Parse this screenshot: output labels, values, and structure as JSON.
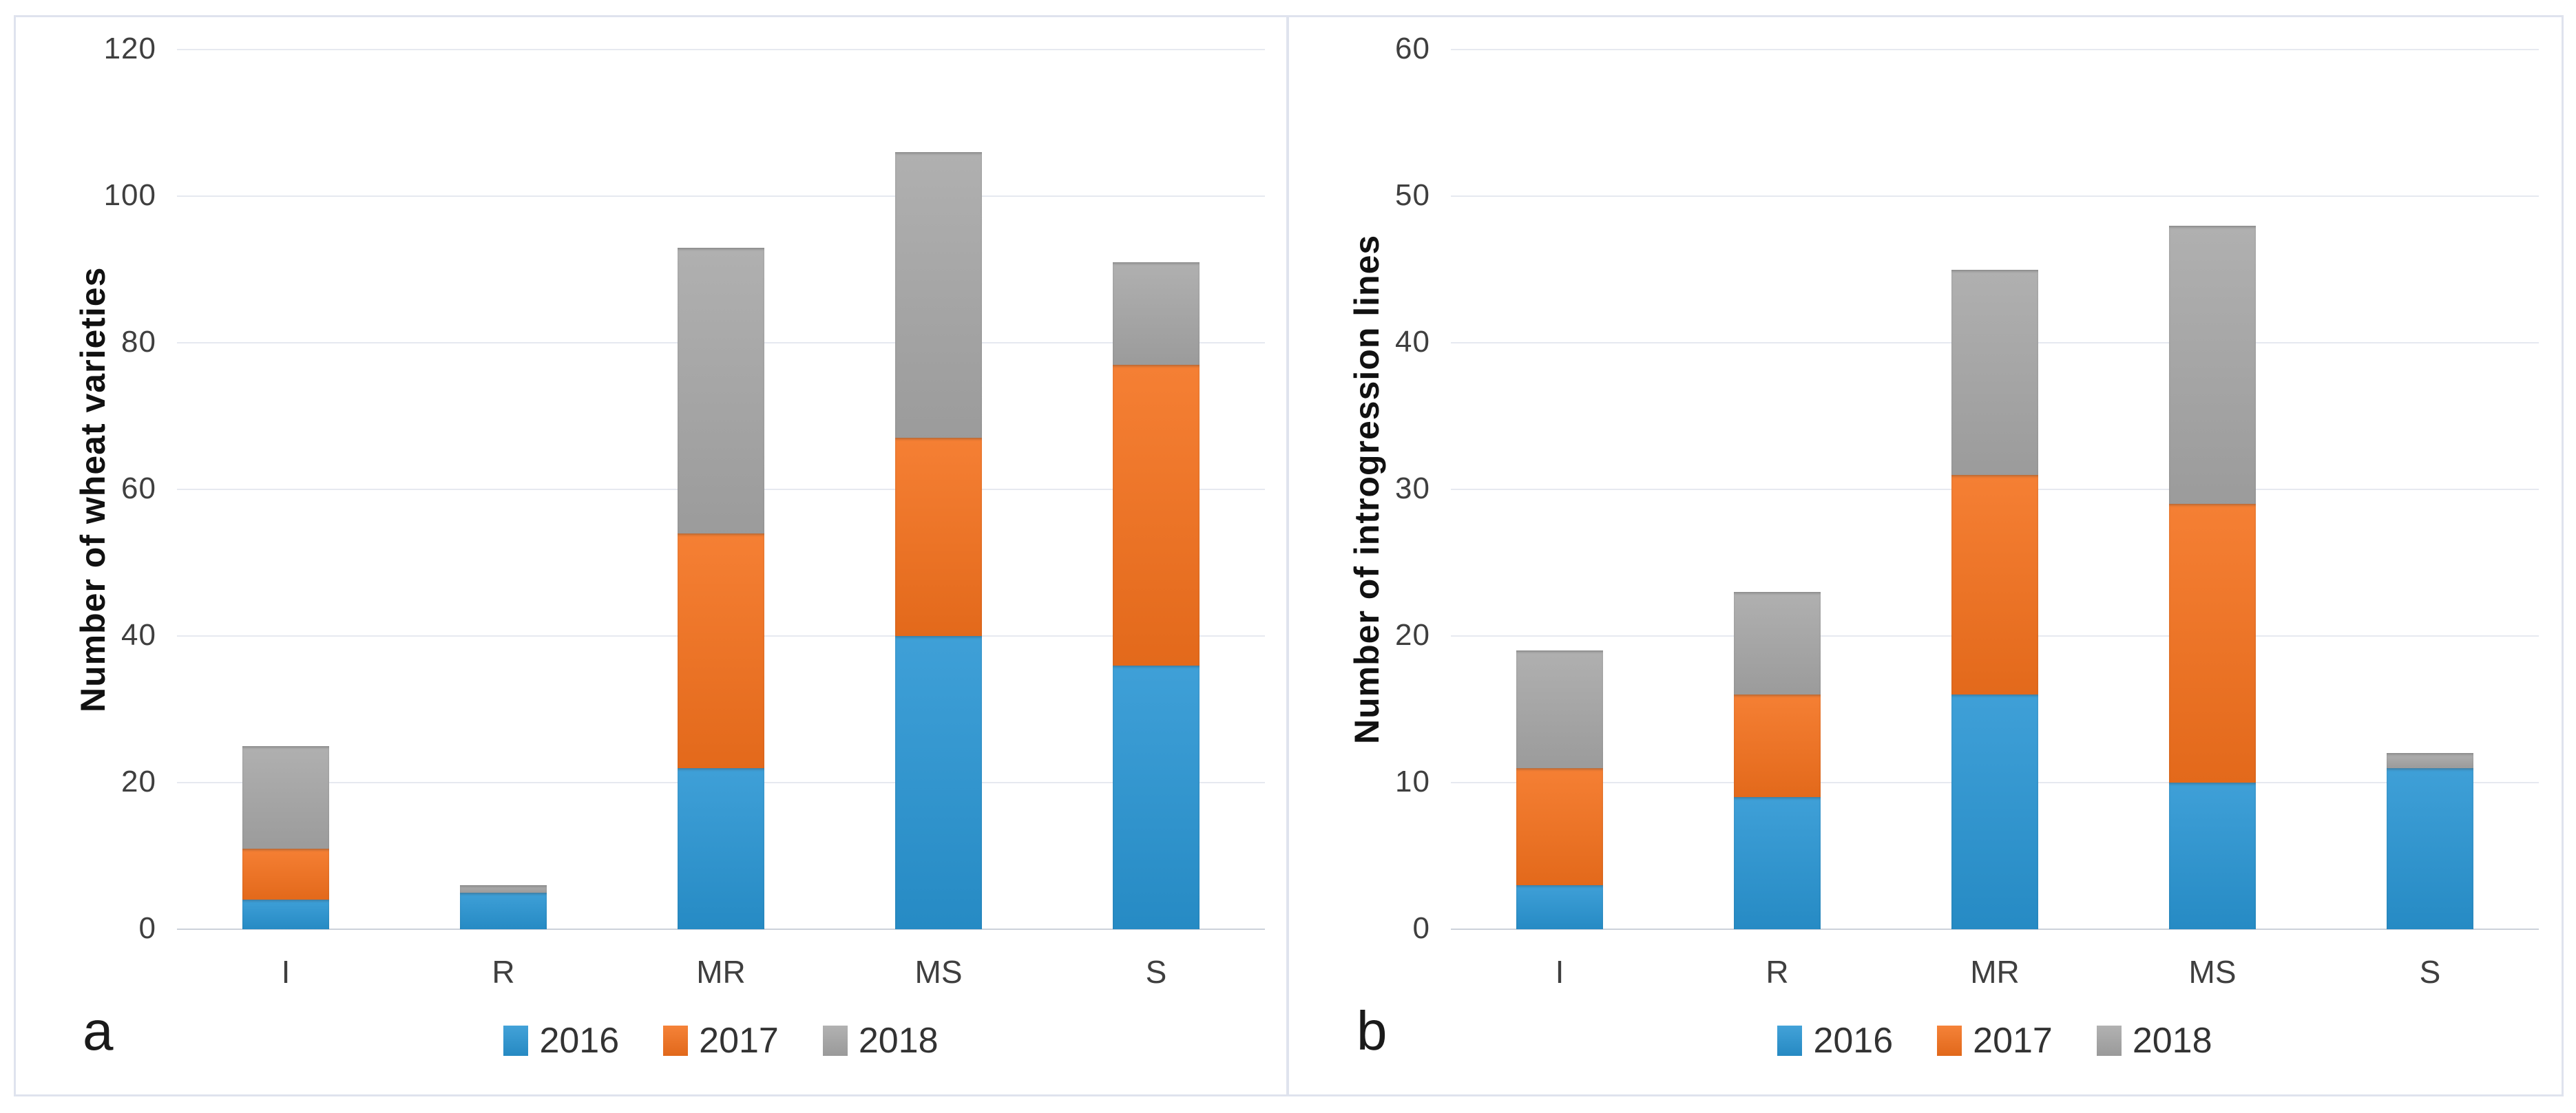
{
  "figure": {
    "panel_letters": [
      "a",
      "b"
    ],
    "background": "#ffffff",
    "frame_color": "#dfe3ee"
  },
  "colors": {
    "series_2016": "#2995d3",
    "series_2017": "#f4711d",
    "series_2018": "#a7a7a7",
    "gridline": "#e6e9f0",
    "baseline": "#ccd1da",
    "tick_text": "#3f3f3f",
    "title_text": "#111111"
  },
  "chart_data": [
    {
      "type": "bar",
      "stacked": true,
      "panel_label": "a",
      "title": "",
      "xlabel": "",
      "ylabel": "Number of wheat varieties",
      "categories": [
        "I",
        "R",
        "MR",
        "MS",
        "S"
      ],
      "series": [
        {
          "name": "2016",
          "color": "#2995d3",
          "values": [
            4,
            5,
            22,
            40,
            36
          ]
        },
        {
          "name": "2017",
          "color": "#f4711d",
          "values": [
            7,
            0,
            32,
            27,
            41
          ]
        },
        {
          "name": "2018",
          "color": "#a7a7a7",
          "values": [
            14,
            1,
            39,
            39,
            14
          ]
        }
      ],
      "totals": [
        25,
        6,
        93,
        106,
        91
      ],
      "ylim": [
        0,
        120
      ],
      "ytick_step": 20,
      "ytick_labels": [
        "0",
        "20",
        "40",
        "60",
        "80",
        "100",
        "120"
      ],
      "grid": true,
      "legend_position": "bottom",
      "legend_entries": [
        "2016",
        "2017",
        "2018"
      ]
    },
    {
      "type": "bar",
      "stacked": true,
      "panel_label": "b",
      "title": "",
      "xlabel": "",
      "ylabel": "Number of introgression lines",
      "categories": [
        "I",
        "R",
        "MR",
        "MS",
        "S"
      ],
      "series": [
        {
          "name": "2016",
          "color": "#2995d3",
          "values": [
            3,
            9,
            16,
            10,
            11
          ]
        },
        {
          "name": "2017",
          "color": "#f4711d",
          "values": [
            8,
            7,
            15,
            19,
            0
          ]
        },
        {
          "name": "2018",
          "color": "#a7a7a7",
          "values": [
            8,
            7,
            14,
            19,
            1
          ]
        }
      ],
      "totals": [
        19,
        23,
        45,
        48,
        12
      ],
      "ylim": [
        0,
        60
      ],
      "ytick_step": 10,
      "ytick_labels": [
        "0",
        "10",
        "20",
        "30",
        "40",
        "50",
        "60"
      ],
      "grid": true,
      "legend_position": "bottom",
      "legend_entries": [
        "2016",
        "2017",
        "2018"
      ]
    }
  ]
}
